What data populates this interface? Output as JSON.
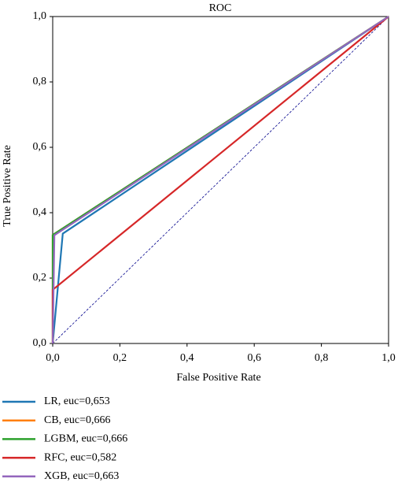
{
  "chart_data": {
    "type": "line",
    "title": "ROC",
    "xlabel": "False Positive Rate",
    "ylabel": "True Positive Rate",
    "xlim": [
      0,
      1
    ],
    "ylim": [
      0,
      1
    ],
    "xticks": [
      {
        "value": 0,
        "label": "0,0"
      },
      {
        "value": 0.2,
        "label": "0,2"
      },
      {
        "value": 0.4,
        "label": "0,4"
      },
      {
        "value": 0.6,
        "label": "0,6"
      },
      {
        "value": 0.8,
        "label": "0,8"
      },
      {
        "value": 1,
        "label": "1,0"
      }
    ],
    "yticks": [
      {
        "value": 0,
        "label": "0,0"
      },
      {
        "value": 0.2,
        "label": "0,2"
      },
      {
        "value": 0.4,
        "label": "0,4"
      },
      {
        "value": 0.6,
        "label": "0,6"
      },
      {
        "value": 0.8,
        "label": "0,8"
      },
      {
        "value": 1,
        "label": "1,0"
      }
    ],
    "series": [
      {
        "name": "LR, euc=0,653",
        "color": "#1f77b4",
        "x": [
          0,
          0.03,
          1
        ],
        "values": [
          0,
          0.336,
          1
        ]
      },
      {
        "name": "CB, euc=0,666",
        "color": "#ff7f0e",
        "x": [
          0,
          0,
          1
        ],
        "values": [
          0,
          0.332,
          1
        ]
      },
      {
        "name": "LGBM, euc=0,666",
        "color": "#2ca02c",
        "x": [
          0,
          0,
          1
        ],
        "values": [
          0,
          0.332,
          1
        ]
      },
      {
        "name": "RFC, euc=0,582",
        "color": "#d62728",
        "x": [
          0,
          0,
          1
        ],
        "values": [
          0,
          0.164,
          1
        ]
      },
      {
        "name": "XGB, euc=0,663",
        "color": "#9467bd",
        "x": [
          0,
          0.005,
          1
        ],
        "values": [
          0,
          0.331,
          1
        ]
      }
    ]
  }
}
